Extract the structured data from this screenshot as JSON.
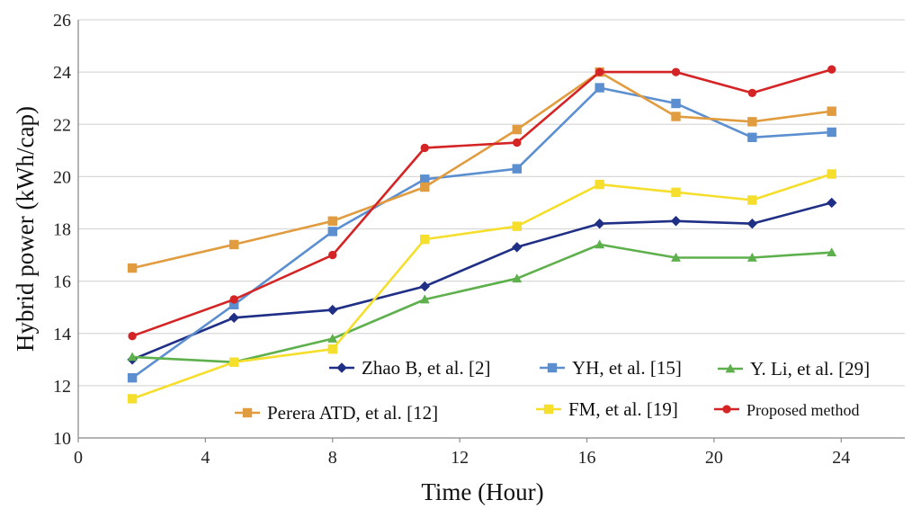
{
  "chart_data": {
    "type": "line",
    "xlabel": "Time (Hour)",
    "ylabel": "Hybrid power (kWh/cap)",
    "xlim": [
      0,
      26
    ],
    "ylim": [
      10,
      26
    ],
    "xticks": [
      0,
      4,
      8,
      12,
      16,
      20,
      24
    ],
    "yticks": [
      10,
      12,
      14,
      16,
      18,
      20,
      22,
      24,
      26
    ],
    "grid": "horizontal",
    "legend_position": "inside-bottom-right",
    "x": [
      1.7,
      4.9,
      8.0,
      10.9,
      13.8,
      16.4,
      18.8,
      21.2,
      23.7
    ],
    "series": [
      {
        "name": "Zhao B, et al. [2]",
        "color": "#1f2f86",
        "marker": "diamond",
        "values": [
          13.0,
          14.6,
          14.9,
          15.8,
          17.3,
          18.2,
          18.3,
          18.2,
          19.0
        ]
      },
      {
        "name": "YH, et al. [15]",
        "color": "#5b8fd0",
        "marker": "square",
        "values": [
          12.3,
          15.1,
          17.9,
          19.9,
          20.3,
          23.4,
          22.8,
          21.5,
          21.7
        ]
      },
      {
        "name": "Y. Li, et al. [29]",
        "color": "#5eb04d",
        "marker": "triangle",
        "values": [
          13.1,
          12.9,
          13.8,
          15.3,
          16.1,
          17.4,
          16.9,
          16.9,
          17.1
        ]
      },
      {
        "name": "Perera ATD, et al. [12]",
        "color": "#e09c3f",
        "marker": "square",
        "values": [
          16.5,
          17.4,
          18.3,
          19.6,
          21.8,
          24.0,
          22.3,
          22.1,
          22.5
        ]
      },
      {
        "name": "FM, et al. [19]",
        "color": "#f5de2c",
        "marker": "square",
        "values": [
          11.5,
          12.9,
          13.4,
          17.6,
          18.1,
          19.7,
          19.4,
          19.1,
          20.1
        ]
      },
      {
        "name": "Proposed method",
        "color": "#d42425",
        "marker": "circle",
        "values": [
          13.9,
          15.3,
          17.0,
          21.1,
          21.3,
          24.0,
          24.0,
          23.2,
          24.1
        ]
      }
    ]
  }
}
